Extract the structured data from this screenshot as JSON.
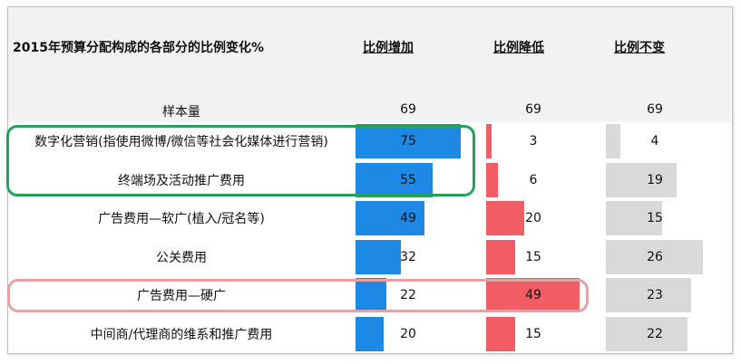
{
  "chart_data": {
    "type": "table",
    "title": "2015年预算分配构成的各部分的比例变化%",
    "columns": [
      "比例增加",
      "比例降低",
      "比例不变"
    ],
    "sample": {
      "label": "样本量",
      "values": [
        69,
        69,
        69
      ]
    },
    "rows": [
      {
        "label": "数字化营销(指使用微博/微信等社会化媒体进行营销)",
        "values": [
          75,
          3,
          4
        ]
      },
      {
        "label": "终端场及活动推广费用",
        "values": [
          55,
          6,
          19
        ]
      },
      {
        "label": "广告费用—软广(植入/冠名等)",
        "values": [
          49,
          20,
          15
        ]
      },
      {
        "label": "公关费用",
        "values": [
          32,
          15,
          26
        ]
      },
      {
        "label": "广告费用—硬广",
        "values": [
          22,
          49,
          23
        ]
      },
      {
        "label": "中间商/代理商的维系和推广费用",
        "values": [
          20,
          15,
          22
        ]
      }
    ],
    "colors": {
      "increase": "#1e88e5",
      "decrease": "#f25c64",
      "unchanged": "#d9d9d9"
    },
    "highlights": [
      {
        "rows": [
          0,
          1
        ],
        "color": "#1fa35c"
      },
      {
        "rows": [
          4
        ],
        "color": "#e3a3a6"
      }
    ]
  }
}
